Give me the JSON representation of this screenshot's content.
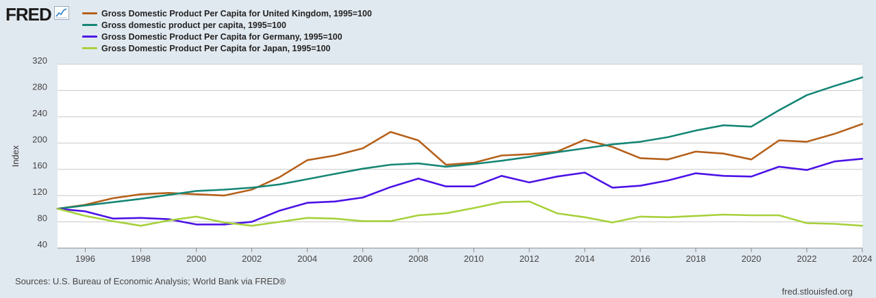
{
  "logo": {
    "text": "FRED",
    "icon": "line-chart-icon"
  },
  "legend": [
    {
      "label": "Gross Domestic Product Per Capita for United Kingdom, 1995=100",
      "color": "#b5601a"
    },
    {
      "label": "Gross domestic product per capita, 1995=100",
      "color": "#158675"
    },
    {
      "label": "Gross Domestic Product Per Capita for Germany, 1995=100",
      "color": "#4b12e6"
    },
    {
      "label": "Gross Domestic Product Per Capita for Japan, 1995=100",
      "color": "#a6d13a"
    }
  ],
  "footer": {
    "source": "Sources: U.S. Bureau of Economic Analysis; World Bank via FRED®",
    "url": "fred.stlouisfed.org"
  },
  "chart_data": {
    "type": "line",
    "title": "",
    "xlabel": "",
    "ylabel": "Index",
    "xlim": [
      1995,
      2024
    ],
    "ylim": [
      40,
      320
    ],
    "yticks": [
      40,
      80,
      120,
      160,
      200,
      240,
      280,
      320
    ],
    "xticks": [
      1996,
      1998,
      2000,
      2002,
      2004,
      2006,
      2008,
      2010,
      2012,
      2014,
      2016,
      2018,
      2020,
      2022,
      2024
    ],
    "grid": true,
    "x": [
      1995,
      1996,
      1997,
      1998,
      1999,
      2000,
      2001,
      2002,
      2003,
      2004,
      2005,
      2006,
      2007,
      2008,
      2009,
      2010,
      2011,
      2012,
      2013,
      2014,
      2015,
      2016,
      2017,
      2018,
      2019,
      2020,
      2021,
      2022,
      2023,
      2024
    ],
    "series": [
      {
        "name": "Gross Domestic Product Per Capita for United Kingdom, 1995=100",
        "color": "#b5601a",
        "values": [
          100,
          106,
          116,
          122,
          124,
          122,
          120,
          129,
          148,
          174,
          181,
          192,
          217,
          204,
          167,
          170,
          181,
          183,
          187,
          205,
          194,
          177,
          175,
          187,
          184,
          175,
          204,
          202,
          214,
          229
        ]
      },
      {
        "name": "Gross domestic product per capita, 1995=100",
        "color": "#158675",
        "values": [
          100,
          105,
          110,
          115,
          121,
          127,
          129,
          132,
          137,
          145,
          153,
          161,
          167,
          169,
          164,
          168,
          173,
          179,
          186,
          192,
          198,
          202,
          209,
          219,
          227,
          225,
          250,
          273,
          287,
          300
        ]
      },
      {
        "name": "Gross Domestic Product Per Capita for Germany, 1995=100",
        "color": "#4b12e6",
        "values": [
          100,
          96,
          85,
          86,
          84,
          76,
          76,
          80,
          97,
          109,
          111,
          117,
          133,
          146,
          134,
          134,
          150,
          140,
          149,
          155,
          132,
          135,
          143,
          154,
          150,
          149,
          164,
          159,
          172,
          176
        ]
      },
      {
        "name": "Gross Domestic Product Per Capita for Japan, 1995=100",
        "color": "#a6d13a",
        "values": [
          100,
          89,
          81,
          74,
          82,
          88,
          79,
          74,
          80,
          86,
          85,
          81,
          81,
          90,
          93,
          101,
          110,
          111,
          93,
          87,
          79,
          88,
          87,
          89,
          91,
          90,
          90,
          78,
          77,
          74
        ]
      }
    ]
  }
}
